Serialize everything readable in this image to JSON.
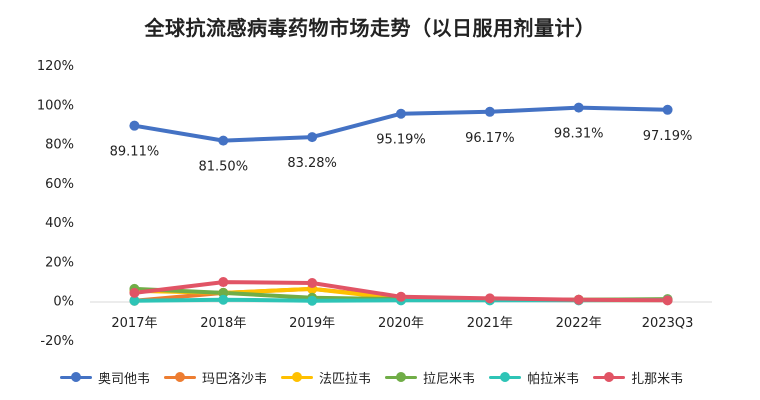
{
  "chart_data": {
    "type": "line",
    "title": "全球抗流感病毒药物市场走势（以日服用剂量计）",
    "categories": [
      "2017年",
      "2018年",
      "2019年",
      "2020年",
      "2021年",
      "2022年",
      "2023Q3"
    ],
    "yticks": [
      "-20%",
      "0%",
      "20%",
      "40%",
      "60%",
      "80%",
      "100%",
      "120%"
    ],
    "ylim": [
      -20,
      120
    ],
    "grid": false,
    "legend_position": "bottom",
    "series": [
      {
        "name": "奥司他韦",
        "color": "#4472C4",
        "values": [
          89.11,
          81.5,
          83.28,
          95.19,
          96.17,
          98.31,
          97.19
        ],
        "labels": [
          "89.11%",
          "81.50%",
          "83.28%",
          "95.19%",
          "96.17%",
          "98.31%",
          "97.19%"
        ]
      },
      {
        "name": "玛巴洛沙韦",
        "color": "#ED7D31",
        "values": [
          0,
          4,
          6,
          1.5,
          0.8,
          0.5,
          0.5
        ]
      },
      {
        "name": "法匹拉韦",
        "color": "#FFC000",
        "values": [
          5,
          4,
          6,
          1,
          0.5,
          0.3,
          0.3
        ]
      },
      {
        "name": "拉尼米韦",
        "color": "#70AD47",
        "values": [
          6,
          4,
          1.5,
          0.8,
          0.6,
          0.5,
          0.8
        ]
      },
      {
        "name": "帕拉米韦",
        "color": "#2EC4B6",
        "values": [
          0,
          0.5,
          0,
          0.2,
          0.2,
          0.2,
          0.3
        ]
      },
      {
        "name": "扎那米韦",
        "color": "#E15465",
        "values": [
          4,
          9.5,
          9,
          2,
          1.2,
          0.5,
          0.2
        ]
      }
    ]
  }
}
